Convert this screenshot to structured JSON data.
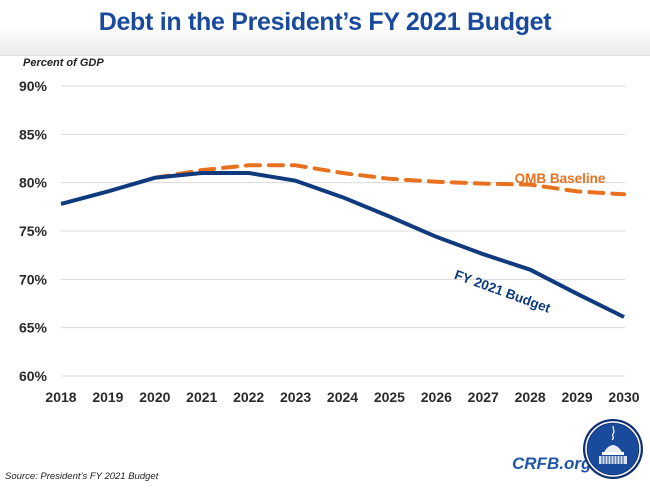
{
  "header": {
    "title": "Debt in the President’s FY 2021 Budget"
  },
  "chart_data": {
    "type": "line",
    "title": "Debt in the President’s FY 2021 Budget",
    "ylabel": "Percent of GDP",
    "xlabel": "",
    "x": [
      2018,
      2019,
      2020,
      2021,
      2022,
      2023,
      2024,
      2025,
      2026,
      2027,
      2028,
      2029,
      2030
    ],
    "x_tick_labels": [
      "2018",
      "2019",
      "2020",
      "2021",
      "2022",
      "2023",
      "2024",
      "2025",
      "2026",
      "2027",
      "2028",
      "2029",
      "2030"
    ],
    "ylim": [
      60,
      90
    ],
    "y_ticks": [
      60,
      65,
      70,
      75,
      80,
      85,
      90
    ],
    "y_tick_labels": [
      "60%",
      "65%",
      "70%",
      "75%",
      "80%",
      "85%",
      "90%"
    ],
    "grid": true,
    "legend": "inline-labels",
    "series": [
      {
        "name": "OMB Baseline",
        "style": "dashed",
        "color": "#e8711f",
        "x": [
          2020,
          2021,
          2022,
          2023,
          2024,
          2025,
          2026,
          2027,
          2028,
          2029,
          2030
        ],
        "values": [
          80.5,
          81.3,
          81.8,
          81.8,
          81.0,
          80.4,
          80.1,
          79.9,
          79.8,
          79.1,
          78.8
        ]
      },
      {
        "name": "FY 2021 Budget",
        "style": "solid",
        "color": "#0f3a7d",
        "x": [
          2018,
          2019,
          2020,
          2021,
          2022,
          2023,
          2024,
          2025,
          2026,
          2027,
          2028,
          2029,
          2030
        ],
        "values": [
          77.8,
          79.1,
          80.5,
          81.0,
          81.0,
          80.2,
          78.5,
          76.5,
          74.4,
          72.6,
          71.0,
          68.5,
          66.1
        ]
      }
    ],
    "annotations": [
      "OMB Baseline",
      "FY 2021 Budget"
    ]
  },
  "footer": {
    "source": "Source: President’s FY 2021 Budget",
    "brand": "CRFB.org",
    "logo_icon": "capitol-dome-icon"
  }
}
